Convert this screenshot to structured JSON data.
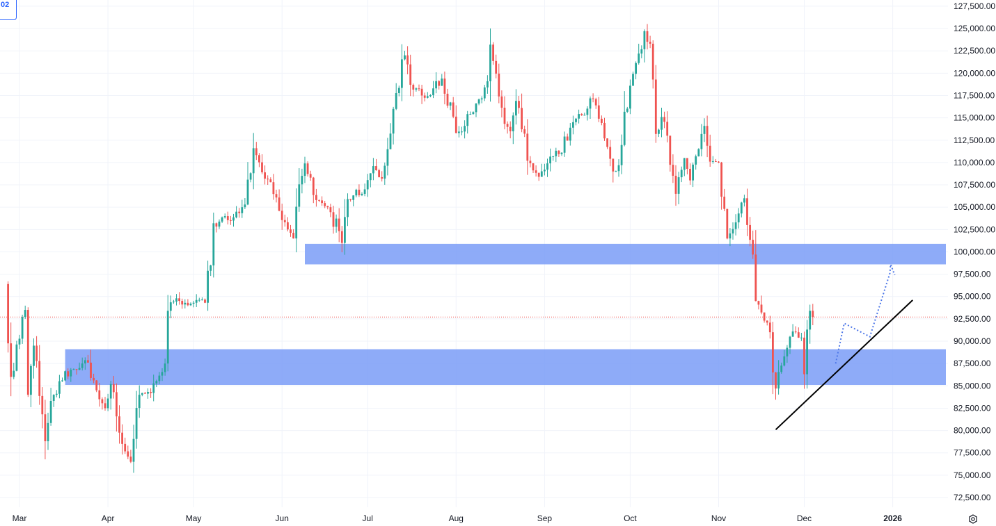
{
  "badge": {
    "text": "02"
  },
  "colors": {
    "up": "#26a69a",
    "down": "#ef5350",
    "zone": "#7a9cf7",
    "trendline": "#000000",
    "projection": "#4f78e8",
    "last_price_line": "#ef5350",
    "grid": "#f0f3fa"
  },
  "icons": {
    "settings": "gear-icon"
  },
  "chart_data": {
    "type": "candlestick",
    "ylim": [
      71500,
      128000
    ],
    "price_ticks": [
      "72,500.00",
      "75,000.00",
      "77,500.00",
      "80,000.00",
      "82,500.00",
      "85,000.00",
      "87,500.00",
      "90,000.00",
      "92,500.00",
      "95,000.00",
      "97,500.00",
      "100,000.00",
      "102,500.00",
      "105,000.00",
      "107,500.00",
      "110,000.00",
      "112,500.00",
      "115,000.00",
      "117,500.00",
      "120,000.00",
      "122,500.00",
      "125,000.00",
      "127,500.00"
    ],
    "time_labels": [
      {
        "label": "Mar",
        "date": "2025-03-01"
      },
      {
        "label": "Apr",
        "date": "2025-04-01"
      },
      {
        "label": "May",
        "date": "2025-05-01"
      },
      {
        "label": "Jun",
        "date": "2025-06-01"
      },
      {
        "label": "Jul",
        "date": "2025-07-01"
      },
      {
        "label": "Aug",
        "date": "2025-08-01"
      },
      {
        "label": "Sep",
        "date": "2025-09-01"
      },
      {
        "label": "Oct",
        "date": "2025-10-01"
      },
      {
        "label": "Nov",
        "date": "2025-11-01"
      },
      {
        "label": "Dec",
        "date": "2025-12-01"
      },
      {
        "label": "2026",
        "date": "2026-01-01",
        "year": true
      }
    ],
    "last_price": 92700,
    "zones": [
      {
        "start": "2025-06-09",
        "end": "2026-02-20",
        "low": 98600,
        "high": 100900
      },
      {
        "start": "2025-03-17",
        "end": "2026-02-20",
        "low": 85100,
        "high": 89100
      }
    ],
    "trendline": {
      "start_date": "2025-11-21",
      "start_price": 80100,
      "end_date": "2026-01-08",
      "end_price": 94600
    },
    "projection_path": [
      {
        "date": "2025-12-12",
        "price": 87500
      },
      {
        "date": "2025-12-15",
        "price": 92000
      },
      {
        "date": "2025-12-24",
        "price": 90500
      },
      {
        "date": "2025-12-31",
        "price": 97600
      },
      {
        "date": "2026-01-01",
        "price": 98600
      },
      {
        "date": "2026-01-01",
        "price": 97400
      }
    ],
    "anchors": [
      [
        "2025-02-24",
        96400
      ],
      [
        "2025-02-26",
        86000
      ],
      [
        "2025-03-03",
        93500
      ],
      [
        "2025-03-04",
        84000
      ],
      [
        "2025-03-06",
        89500
      ],
      [
        "2025-03-10",
        78800
      ],
      [
        "2025-03-13",
        84000
      ],
      [
        "2025-03-19",
        86800
      ],
      [
        "2025-03-25",
        87600
      ],
      [
        "2025-03-28",
        84500
      ],
      [
        "2025-03-31",
        82500
      ],
      [
        "2025-04-02",
        85200
      ],
      [
        "2025-04-06",
        78500
      ],
      [
        "2025-04-09",
        76500
      ],
      [
        "2025-04-12",
        84000
      ],
      [
        "2025-04-16",
        84200
      ],
      [
        "2025-04-21",
        87500
      ],
      [
        "2025-04-22",
        93400
      ],
      [
        "2025-04-25",
        94800
      ],
      [
        "2025-04-30",
        94200
      ],
      [
        "2025-05-05",
        94300
      ],
      [
        "2025-05-08",
        103200
      ],
      [
        "2025-05-12",
        104000
      ],
      [
        "2025-05-14",
        103500
      ],
      [
        "2025-05-19",
        105300
      ],
      [
        "2025-05-22",
        111600
      ],
      [
        "2025-05-25",
        108900
      ],
      [
        "2025-05-28",
        107800
      ],
      [
        "2025-05-31",
        104600
      ],
      [
        "2025-06-05",
        101500
      ],
      [
        "2025-06-09",
        109900
      ],
      [
        "2025-06-13",
        105800
      ],
      [
        "2025-06-17",
        105000
      ],
      [
        "2025-06-22",
        101000
      ],
      [
        "2025-06-24",
        105900
      ],
      [
        "2025-06-30",
        107000
      ],
      [
        "2025-07-03",
        109600
      ],
      [
        "2025-07-06",
        108200
      ],
      [
        "2025-07-10",
        116000
      ],
      [
        "2025-07-14",
        122000
      ],
      [
        "2025-07-16",
        118700
      ],
      [
        "2025-07-20",
        117500
      ],
      [
        "2025-07-24",
        118300
      ],
      [
        "2025-07-27",
        119400
      ],
      [
        "2025-08-01",
        113300
      ],
      [
        "2025-08-04",
        114100
      ],
      [
        "2025-08-08",
        116600
      ],
      [
        "2025-08-12",
        119100
      ],
      [
        "2025-08-13",
        123200
      ],
      [
        "2025-08-16",
        117400
      ],
      [
        "2025-08-20",
        113500
      ],
      [
        "2025-08-22",
        116900
      ],
      [
        "2025-08-26",
        110200
      ],
      [
        "2025-08-30",
        108400
      ],
      [
        "2025-09-01",
        109200
      ],
      [
        "2025-09-04",
        110700
      ],
      [
        "2025-09-07",
        111100
      ],
      [
        "2025-09-10",
        113900
      ],
      [
        "2025-09-14",
        115300
      ],
      [
        "2025-09-18",
        117100
      ],
      [
        "2025-09-22",
        112700
      ],
      [
        "2025-09-25",
        109000
      ],
      [
        "2025-09-27",
        109700
      ],
      [
        "2025-10-01",
        118600
      ],
      [
        "2025-10-04",
        122200
      ],
      [
        "2025-10-06",
        124700
      ],
      [
        "2025-10-08",
        123300
      ],
      [
        "2025-10-10",
        113200
      ],
      [
        "2025-10-12",
        115100
      ],
      [
        "2025-10-14",
        113000
      ],
      [
        "2025-10-17",
        106500
      ],
      [
        "2025-10-20",
        110500
      ],
      [
        "2025-10-22",
        108000
      ],
      [
        "2025-10-25",
        111500
      ],
      [
        "2025-10-27",
        114100
      ],
      [
        "2025-10-29",
        110100
      ],
      [
        "2025-11-01",
        110000
      ],
      [
        "2025-11-04",
        101500
      ],
      [
        "2025-11-07",
        103300
      ],
      [
        "2025-11-10",
        106000
      ],
      [
        "2025-11-11",
        103000
      ],
      [
        "2025-11-13",
        99700
      ],
      [
        "2025-11-14",
        94500
      ],
      [
        "2025-11-17",
        92300
      ],
      [
        "2025-11-19",
        91000
      ],
      [
        "2025-11-20",
        86500
      ],
      [
        "2025-11-21",
        84700
      ],
      [
        "2025-11-24",
        88300
      ],
      [
        "2025-11-26",
        90500
      ],
      [
        "2025-11-28",
        91000
      ],
      [
        "2025-11-30",
        90400
      ],
      [
        "2025-12-01",
        86300
      ],
      [
        "2025-12-02",
        91300
      ],
      [
        "2025-12-03",
        93400
      ],
      [
        "2025-12-04",
        92700
      ]
    ]
  }
}
